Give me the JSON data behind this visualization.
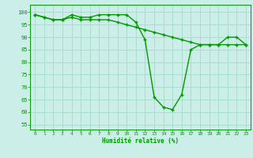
{
  "xlabel": "Humidité relative (%)",
  "background_color": "#cceee8",
  "grid_color": "#aaddcc",
  "line_color": "#009900",
  "xlim": [
    -0.5,
    23.5
  ],
  "ylim": [
    53,
    103
  ],
  "yticks": [
    55,
    60,
    65,
    70,
    75,
    80,
    85,
    90,
    95,
    100
  ],
  "xticks": [
    0,
    1,
    2,
    3,
    4,
    5,
    6,
    7,
    8,
    9,
    10,
    11,
    12,
    13,
    14,
    15,
    16,
    17,
    18,
    19,
    20,
    21,
    22,
    23
  ],
  "series1_x": [
    0,
    1,
    2,
    3,
    4,
    5,
    6,
    7,
    8,
    9,
    10,
    11,
    12,
    13,
    14,
    15,
    16,
    17,
    18,
    19,
    20,
    21,
    22,
    23
  ],
  "series1_y": [
    99,
    98,
    97,
    97,
    99,
    98,
    98,
    99,
    99,
    99,
    99,
    96,
    89,
    66,
    62,
    61,
    67,
    85,
    87,
    87,
    87,
    90,
    90,
    87
  ],
  "series2_x": [
    0,
    1,
    2,
    3,
    4,
    5,
    6,
    7,
    8,
    9,
    10,
    11,
    12,
    13,
    14,
    15,
    16,
    17,
    18,
    19,
    20,
    21,
    22,
    23
  ],
  "series2_y": [
    99,
    98,
    97,
    97,
    98,
    97,
    97,
    97,
    97,
    96,
    95,
    94,
    93,
    92,
    91,
    90,
    89,
    88,
    87,
    87,
    87,
    87,
    87,
    87
  ]
}
